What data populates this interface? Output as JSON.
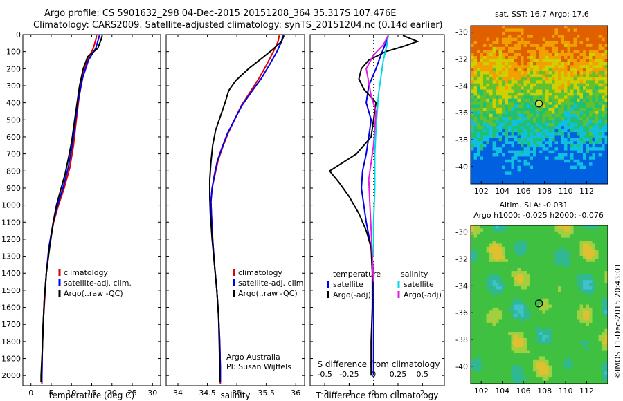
{
  "header": {
    "line1": "Argo profile: CS 5901632_298 04-Dec-2015 20151208_364 35.317S 107.476E",
    "line2": "Climatology: CARS2009. Satellite-adjusted climatology: synTS_20151204.nc (0.14d earlier)"
  },
  "side_label": "©IMOS 11-Dec-2015 20:43:01",
  "colors": {
    "climatology": "#e00000",
    "satellite": "#0000ee",
    "argo": "#000000",
    "cyan": "#00d8e8",
    "magenta": "#e020e0"
  },
  "chart_data": [
    {
      "type": "line",
      "id": "temperature",
      "xlabel": "temperature (deg C)",
      "ylabel": "",
      "xlim": [
        -2,
        32
      ],
      "ylim": [
        2060,
        0
      ],
      "xticks": [
        0,
        5,
        10,
        15,
        20,
        25,
        30
      ],
      "yticks": [
        0,
        100,
        200,
        300,
        400,
        500,
        600,
        700,
        800,
        900,
        1000,
        1100,
        1200,
        1300,
        1400,
        1500,
        1600,
        1700,
        1800,
        1900,
        2000
      ],
      "legend": [
        "climatology",
        "satellite-adj. clim.",
        "Argo(..raw -QC)"
      ],
      "series": [
        {
          "name": "climatology",
          "color": "#e00000",
          "points": [
            [
              16.2,
              5
            ],
            [
              16.0,
              30
            ],
            [
              15.4,
              80
            ],
            [
              13.9,
              150
            ],
            [
              12.7,
              250
            ],
            [
              11.8,
              380
            ],
            [
              11.1,
              520
            ],
            [
              10.5,
              650
            ],
            [
              9.6,
              780
            ],
            [
              8.2,
              900
            ],
            [
              6.8,
              1000
            ],
            [
              5.6,
              1100
            ],
            [
              4.5,
              1250
            ],
            [
              3.8,
              1400
            ],
            [
              3.4,
              1550
            ],
            [
              3.0,
              1700
            ],
            [
              2.8,
              1850
            ],
            [
              2.7,
              2000
            ],
            [
              2.7,
              2050
            ]
          ]
        },
        {
          "name": "satellite-adj. clim.",
          "color": "#0000ee",
          "points": [
            [
              16.9,
              5
            ],
            [
              16.6,
              30
            ],
            [
              16.0,
              80
            ],
            [
              14.2,
              150
            ],
            [
              12.8,
              250
            ],
            [
              11.7,
              380
            ],
            [
              10.9,
              520
            ],
            [
              10.2,
              650
            ],
            [
              9.2,
              780
            ],
            [
              7.9,
              900
            ],
            [
              6.6,
              1000
            ],
            [
              5.5,
              1100
            ],
            [
              4.4,
              1250
            ],
            [
              3.8,
              1400
            ],
            [
              3.3,
              1550
            ],
            [
              3.0,
              1700
            ],
            [
              2.8,
              1850
            ],
            [
              2.7,
              2000
            ],
            [
              2.7,
              2040
            ]
          ]
        },
        {
          "name": "Argo(..raw -QC)",
          "color": "#000000",
          "points": [
            [
              17.6,
              5
            ],
            [
              17.3,
              30
            ],
            [
              16.5,
              80
            ],
            [
              14.0,
              130
            ],
            [
              12.9,
              200
            ],
            [
              12.0,
              300
            ],
            [
              11.4,
              400
            ],
            [
              10.8,
              500
            ],
            [
              10.1,
              620
            ],
            [
              9.3,
              720
            ],
            [
              8.4,
              820
            ],
            [
              7.1,
              930
            ],
            [
              6.3,
              1000
            ],
            [
              5.5,
              1100
            ],
            [
              4.6,
              1250
            ],
            [
              3.8,
              1400
            ],
            [
              3.3,
              1550
            ],
            [
              3.0,
              1700
            ],
            [
              2.8,
              1850
            ],
            [
              2.5,
              2000
            ],
            [
              2.5,
              2040
            ]
          ]
        }
      ]
    },
    {
      "type": "line",
      "id": "salinity",
      "xlabel": "salinity",
      "xlim": [
        33.8,
        36.15
      ],
      "ylim": [
        2060,
        0
      ],
      "xticks": [
        34,
        34.5,
        35,
        35.5,
        36
      ],
      "legend": [
        "climatology",
        "satellite-adj. clim.",
        "Argo(..raw -QC)"
      ],
      "annotations": [
        "Argo Australia",
        "PI: Susan Wijffels"
      ],
      "series": [
        {
          "name": "climatology",
          "color": "#e00000",
          "points": [
            [
              35.72,
              5
            ],
            [
              35.7,
              40
            ],
            [
              35.62,
              100
            ],
            [
              35.5,
              180
            ],
            [
              35.37,
              260
            ],
            [
              35.22,
              340
            ],
            [
              35.07,
              420
            ],
            [
              34.96,
              500
            ],
            [
              34.85,
              580
            ],
            [
              34.76,
              660
            ],
            [
              34.68,
              740
            ],
            [
              34.63,
              820
            ],
            [
              34.58,
              900
            ],
            [
              34.56,
              980
            ],
            [
              34.57,
              1060
            ],
            [
              34.59,
              1200
            ],
            [
              34.62,
              1350
            ],
            [
              34.66,
              1500
            ],
            [
              34.69,
              1650
            ],
            [
              34.71,
              1800
            ],
            [
              34.72,
              1950
            ],
            [
              34.72,
              2050
            ]
          ]
        },
        {
          "name": "satellite-adj. clim.",
          "color": "#0000ee",
          "points": [
            [
              35.78,
              5
            ],
            [
              35.76,
              40
            ],
            [
              35.68,
              100
            ],
            [
              35.55,
              180
            ],
            [
              35.41,
              260
            ],
            [
              35.24,
              340
            ],
            [
              35.08,
              420
            ],
            [
              34.96,
              500
            ],
            [
              34.84,
              580
            ],
            [
              34.75,
              660
            ],
            [
              34.67,
              740
            ],
            [
              34.62,
              820
            ],
            [
              34.58,
              900
            ],
            [
              34.56,
              980
            ],
            [
              34.57,
              1060
            ],
            [
              34.59,
              1200
            ],
            [
              34.62,
              1350
            ],
            [
              34.66,
              1500
            ],
            [
              34.69,
              1650
            ],
            [
              34.71,
              1800
            ],
            [
              34.72,
              1950
            ],
            [
              34.72,
              2040
            ]
          ]
        },
        {
          "name": "Argo(..raw -QC)",
          "color": "#000000",
          "points": [
            [
              35.8,
              5
            ],
            [
              35.76,
              40
            ],
            [
              35.6,
              90
            ],
            [
              35.42,
              140
            ],
            [
              35.2,
              200
            ],
            [
              34.98,
              270
            ],
            [
              34.86,
              330
            ],
            [
              34.8,
              400
            ],
            [
              34.72,
              480
            ],
            [
              34.64,
              560
            ],
            [
              34.59,
              650
            ],
            [
              34.56,
              750
            ],
            [
              34.54,
              850
            ],
            [
              34.54,
              950
            ],
            [
              34.55,
              1050
            ],
            [
              34.58,
              1200
            ],
            [
              34.62,
              1350
            ],
            [
              34.66,
              1500
            ],
            [
              34.69,
              1650
            ],
            [
              34.7,
              1800
            ],
            [
              34.71,
              1950
            ],
            [
              34.71,
              2040
            ]
          ]
        }
      ]
    },
    {
      "type": "line",
      "id": "difference",
      "xlabel": "T difference from climatology",
      "xlabel2": "S difference from climatology",
      "xlim": [
        -2.6,
        2.9
      ],
      "ylim": [
        2060,
        0
      ],
      "xticks": [
        -2,
        -1,
        0,
        1,
        2
      ],
      "xticks_top": [
        -0.5,
        -0.25,
        0,
        0.25,
        0.5
      ],
      "legend_left_title": "temperature",
      "legend_right_title": "salinity",
      "legend_left": [
        "satellite",
        "Argo(-adj)"
      ],
      "legend_right": [
        "satellite",
        "Argo(-adj)"
      ],
      "series": [
        {
          "name": "temperature satellite",
          "color": "#0000ee",
          "points": [
            [
              0.6,
              5
            ],
            [
              0.5,
              50
            ],
            [
              0.3,
              120
            ],
            [
              0.1,
              200
            ],
            [
              -0.2,
              300
            ],
            [
              -0.3,
              400
            ],
            [
              -0.1,
              500
            ],
            [
              -0.2,
              600
            ],
            [
              -0.3,
              700
            ],
            [
              -0.45,
              800
            ],
            [
              -0.5,
              900
            ],
            [
              -0.4,
              1000
            ],
            [
              -0.3,
              1100
            ],
            [
              -0.1,
              1250
            ],
            [
              0.0,
              1400
            ],
            [
              0.0,
              1600
            ],
            [
              0.0,
              1800
            ],
            [
              0.0,
              2000
            ]
          ]
        },
        {
          "name": "temperature Argo(-adj)",
          "color": "#000000",
          "points": [
            [
              1.2,
              5
            ],
            [
              1.8,
              40
            ],
            [
              1.2,
              70
            ],
            [
              0.5,
              100
            ],
            [
              -0.2,
              150
            ],
            [
              -0.5,
              200
            ],
            [
              -0.6,
              260
            ],
            [
              -0.4,
              320
            ],
            [
              0.1,
              400
            ],
            [
              0.0,
              500
            ],
            [
              -0.1,
              600
            ],
            [
              -0.7,
              700
            ],
            [
              -1.8,
              800
            ],
            [
              -1.4,
              870
            ],
            [
              -1.0,
              950
            ],
            [
              -0.6,
              1050
            ],
            [
              -0.3,
              1150
            ],
            [
              -0.1,
              1250
            ],
            [
              -0.05,
              1400
            ],
            [
              -0.05,
              1600
            ],
            [
              -0.1,
              1800
            ],
            [
              -0.1,
              2000
            ]
          ]
        },
        {
          "name": "salinity satellite",
          "color": "#00d8e8",
          "points": [
            [
              0.6,
              5
            ],
            [
              0.55,
              60
            ],
            [
              0.4,
              150
            ],
            [
              0.3,
              250
            ],
            [
              0.2,
              350
            ],
            [
              0.15,
              450
            ],
            [
              0.1,
              550
            ],
            [
              0.05,
              700
            ],
            [
              0.05,
              900
            ],
            [
              0.0,
              1100
            ],
            [
              0.0,
              1300
            ]
          ]
        },
        {
          "name": "salinity Argo(-adj)",
          "color": "#e020e0",
          "points": [
            [
              0.6,
              5
            ],
            [
              0.4,
              60
            ],
            [
              0.0,
              120
            ],
            [
              -0.3,
              200
            ],
            [
              -0.2,
              280
            ],
            [
              -0.1,
              360
            ],
            [
              0.1,
              450
            ],
            [
              0.05,
              550
            ],
            [
              0.0,
              650
            ],
            [
              -0.1,
              750
            ],
            [
              -0.2,
              850
            ],
            [
              -0.15,
              1000
            ],
            [
              -0.1,
              1150
            ],
            [
              -0.05,
              1300
            ],
            [
              0.0,
              1450
            ]
          ]
        }
      ]
    },
    {
      "type": "heatmap",
      "id": "sst_map",
      "title": "sat. SST: 16.7  Argo: 17.6",
      "xticks": [
        102,
        104,
        106,
        108,
        110,
        112
      ],
      "yticks": [
        -30,
        -32,
        -34,
        -36,
        -38,
        -40
      ],
      "xlim": [
        101,
        114
      ],
      "ylim": [
        -41.3,
        -29.5
      ],
      "marker": [
        107.476,
        -35.317
      ]
    },
    {
      "type": "heatmap",
      "id": "sla_map",
      "title": "Altim. SLA: -0.031",
      "subtitle": "Argo h1000: -0.025  h2000: -0.076",
      "xticks": [
        102,
        104,
        106,
        108,
        110,
        112
      ],
      "yticks": [
        -30,
        -32,
        -34,
        -36,
        -38,
        -40
      ],
      "xlim": [
        101,
        114
      ],
      "ylim": [
        -41.3,
        -29.5
      ],
      "marker": [
        107.476,
        -35.317
      ]
    }
  ]
}
